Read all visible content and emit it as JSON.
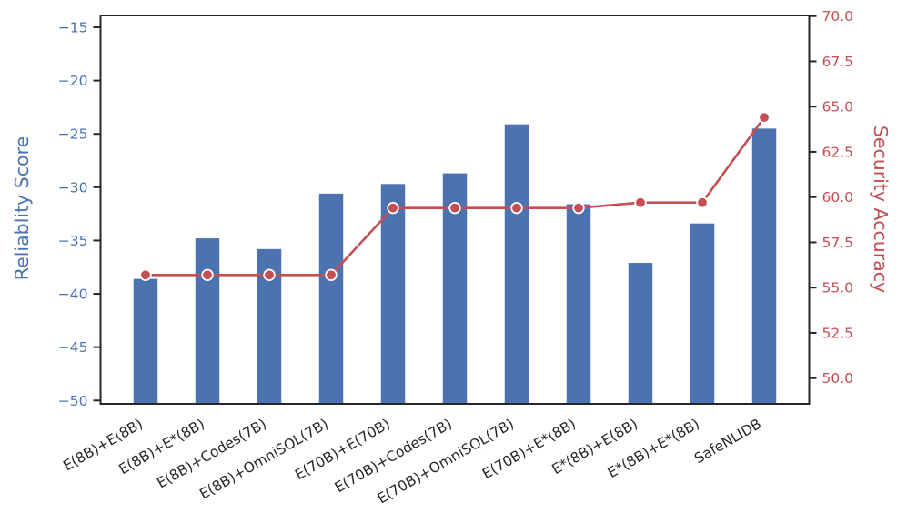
{
  "chart_data": {
    "type": "bar",
    "title": "",
    "categories": [
      "E(8B)+E(8B)",
      "E(8B)+E*(8B)",
      "E(8B)+Codes(7B)",
      "E(8B)+OmniSQL(7B)",
      "E(70B)+E(70B)",
      "E(70B)+Codes(7B)",
      "E(70B)+OmniSQL(7B)",
      "E(70B)+E*(8B)",
      "E*(8B)+E(8B)",
      "E*(8B)+E*(8B)",
      "SafeNLIDB"
    ],
    "series": [
      {
        "name": "Reliability Score",
        "type": "bar",
        "axis": "left",
        "color": "#4C72B0",
        "values": [
          -38.6,
          -34.8,
          -35.8,
          -30.6,
          -29.7,
          -28.7,
          -24.1,
          -31.6,
          -37.1,
          -33.4,
          -24.5
        ]
      },
      {
        "name": "Security Accuracy",
        "type": "line",
        "axis": "right",
        "color": "#C44E52",
        "marker": "circle",
        "marker_edge_color": "#FFFFFF",
        "values": [
          55.7,
          55.7,
          55.7,
          55.7,
          59.4,
          59.4,
          59.4,
          59.4,
          59.7,
          59.7,
          64.4
        ]
      }
    ],
    "left_axis": {
      "label": "Reliablity Score",
      "color": "#4C72B0",
      "tick_values": [
        -15,
        -20,
        -25,
        -30,
        -35,
        -40,
        -45,
        -50
      ],
      "tick_labels": [
        "−15",
        "−20",
        "−25",
        "−30",
        "−35",
        "−40",
        "−45",
        "−50"
      ],
      "range": [
        -50.3,
        -13.9
      ]
    },
    "right_axis": {
      "label": "Security Accuracy",
      "color": "#C44E52",
      "tick_values": [
        70.0,
        67.5,
        65.0,
        62.5,
        60.0,
        57.5,
        55.0,
        52.5,
        50.0
      ],
      "tick_labels": [
        "70.0",
        "67.5",
        "65.0",
        "62.5",
        "60.0",
        "57.5",
        "55.0",
        "52.5",
        "50.0"
      ],
      "range": [
        48.6,
        70.0
      ]
    },
    "x_axis": {
      "tick_rotation_deg": 30
    },
    "grid": false,
    "legend": false,
    "spine_color": "#262626",
    "background": "#FFFFFF"
  }
}
